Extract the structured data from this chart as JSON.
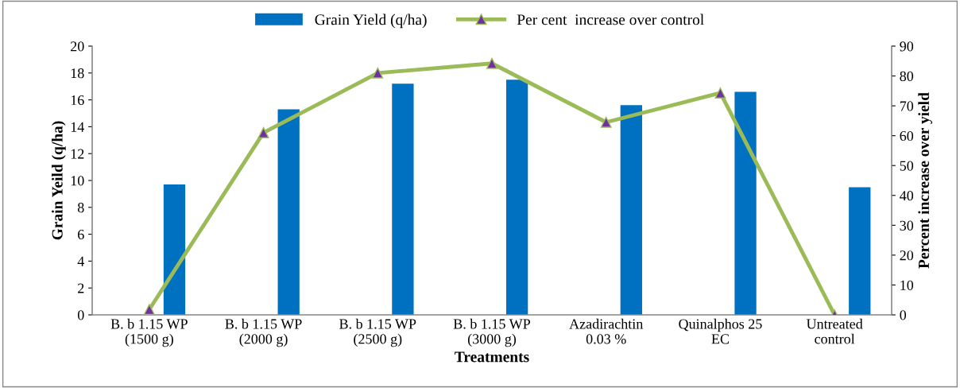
{
  "chart_data": {
    "type": "bar",
    "xlabel": "Treatments",
    "ylabel": "Grain Yeild (q/ha)",
    "y2label": "Percent increase over yield",
    "categories": [
      "B. b 1.15 WP\n(1500 g)",
      "B. b 1.15 WP\n(2000 g)",
      "B. b 1.15 WP\n(2500 g)",
      "B. b 1.15 WP\n(3000 g)",
      "Azadirachtin\n0.03 %",
      "Quinalphos 25\nEC",
      "Untreated\ncontrol"
    ],
    "series": [
      {
        "name": "Grain Yield (q/ha)",
        "color": "#0070c0",
        "values": [
          9.7,
          15.3,
          17.2,
          17.5,
          15.6,
          16.6,
          9.5
        ]
      },
      {
        "name": "Per cent  increase over control",
        "type": "line",
        "axis": "y2",
        "color": "#9bbb59",
        "marker": "triangle",
        "values": [
          1.8,
          61,
          81,
          84.2,
          64.5,
          74.3,
          0
        ]
      }
    ],
    "ylim": [
      0,
      20
    ],
    "yticks": [
      0,
      2,
      4,
      6,
      8,
      10,
      12,
      14,
      16,
      18,
      20
    ],
    "y2lim": [
      0,
      90
    ],
    "y2ticks": [
      0,
      10,
      20,
      30,
      40,
      50,
      60,
      70,
      80,
      90
    ],
    "grid": false,
    "legend": "top"
  }
}
